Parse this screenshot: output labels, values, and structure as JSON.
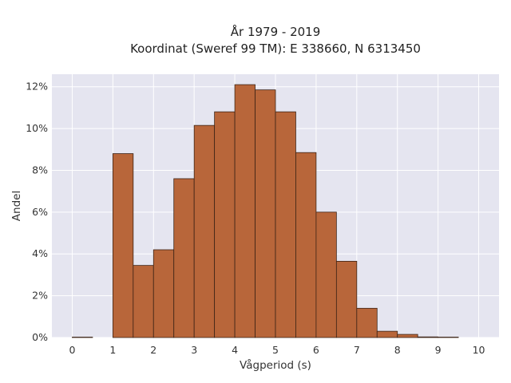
{
  "chart_data": {
    "type": "bar",
    "title_line1": "År 1979 - 2019",
    "title_line2": "Koordinat (Sweref 99 TM): E 338660, N 6313450",
    "xlabel": "Vågperiod (s)",
    "ylabel": "Andel",
    "xlim": [
      -0.5,
      10.5
    ],
    "ylim": [
      0,
      12.6
    ],
    "x_ticks": [
      0,
      1,
      2,
      3,
      4,
      5,
      6,
      7,
      8,
      9,
      10
    ],
    "x_tick_labels": [
      "0",
      "1",
      "2",
      "3",
      "4",
      "5",
      "6",
      "7",
      "8",
      "9",
      "10"
    ],
    "y_ticks": [
      0,
      2,
      4,
      6,
      8,
      10,
      12
    ],
    "y_tick_labels": [
      "0%",
      "2%",
      "4%",
      "6%",
      "8%",
      "10%",
      "12%"
    ],
    "bin_width": 0.5,
    "bins": [
      {
        "start": 0.0,
        "value": 0.02
      },
      {
        "start": 0.5,
        "value": 0.0
      },
      {
        "start": 1.0,
        "value": 8.8
      },
      {
        "start": 1.5,
        "value": 3.45
      },
      {
        "start": 2.0,
        "value": 4.2
      },
      {
        "start": 2.5,
        "value": 7.6
      },
      {
        "start": 3.0,
        "value": 10.15
      },
      {
        "start": 3.5,
        "value": 10.8
      },
      {
        "start": 4.0,
        "value": 12.1
      },
      {
        "start": 4.5,
        "value": 11.85
      },
      {
        "start": 5.0,
        "value": 10.8
      },
      {
        "start": 5.5,
        "value": 8.85
      },
      {
        "start": 6.0,
        "value": 6.0
      },
      {
        "start": 6.5,
        "value": 3.65
      },
      {
        "start": 7.0,
        "value": 1.4
      },
      {
        "start": 7.5,
        "value": 0.3
      },
      {
        "start": 8.0,
        "value": 0.15
      },
      {
        "start": 8.5,
        "value": 0.03
      },
      {
        "start": 9.0,
        "value": 0.02
      }
    ],
    "grid": true,
    "colors": {
      "bar_fill": "#b8663a",
      "bar_stroke": "#3d2416",
      "plot_bg": "#e5e5f0",
      "grid": "#ffffff"
    }
  }
}
